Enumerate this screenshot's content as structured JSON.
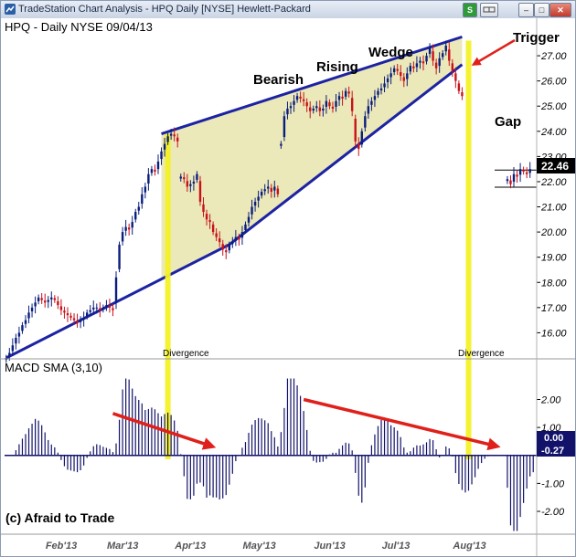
{
  "window": {
    "title": "TradeStation Chart Analysis - HPQ Daily [NYSE] Hewlett-Packard",
    "buttons": {
      "s": "S",
      "minimize": "–",
      "maximize": "□",
      "close": "✕"
    }
  },
  "chart_data": [
    {
      "type": "candlestick",
      "title": "HPQ - Daily  NYSE  09/04/13",
      "ylim": [
        15,
        27.8
      ],
      "y_ticks": [
        16,
        17,
        18,
        19,
        20,
        21,
        22,
        23,
        24,
        25,
        26,
        27
      ],
      "y_tick_labels": [
        "16.00",
        "17.00",
        "18.00",
        "19.00",
        "20.00",
        "21.00",
        "22.00",
        "23.00",
        "24.00",
        "25.00",
        "26.00",
        "27.00"
      ],
      "last_price_label": "22.46",
      "last_price": 22.46,
      "x_tick_labels": [
        "Feb'13",
        "Mar'13",
        "Apr'13",
        "May'13",
        "Jun'13",
        "Jul'13",
        "Aug'13"
      ],
      "series": [
        {
          "segments": [
            {
              "start_day": 0,
              "closes": [
                15.0,
                15.2,
                15.5,
                15.8,
                16.0,
                16.3,
                16.5,
                16.8,
                17.0,
                17.2,
                17.4,
                17.3,
                17.2,
                17.3,
                17.4,
                17.3,
                17.1,
                16.9,
                16.8,
                16.7,
                16.6,
                16.5,
                16.4,
                16.5,
                16.6,
                16.8,
                16.9,
                17.0,
                17.0,
                16.9,
                17.0,
                17.1,
                17.0,
                16.9,
                18.2,
                19.5,
                20.0,
                20.2,
                20.1,
                20.4,
                20.8,
                21.0,
                21.5,
                21.8,
                22.3,
                22.5,
                22.4,
                22.8,
                23.2,
                23.5,
                23.8,
                23.9,
                23.8,
                23.6
              ]
            },
            {
              "start_day": 54,
              "closes": [
                22.2,
                22.1,
                21.8,
                21.9,
                22.0,
                22.3,
                21.2,
                20.8,
                20.5,
                20.4,
                20.0,
                19.8,
                19.6,
                19.3,
                19.2,
                19.5,
                19.6,
                19.8,
                19.7,
                20.0,
                20.3,
                20.6,
                21.0,
                21.2,
                21.4,
                21.6,
                21.7,
                21.8,
                21.6,
                21.8,
                21.5
              ]
            },
            {
              "start_day": 85,
              "closes": [
                23.5,
                24.6,
                24.9,
                25.0,
                25.2,
                25.4,
                25.3,
                25.2,
                25.0,
                24.8,
                24.9,
                25.0,
                24.8,
                24.9,
                25.2,
                25.0,
                24.9,
                25.2,
                25.4,
                25.3,
                25.6,
                25.5,
                24.8,
                23.6,
                23.3,
                24.0,
                24.6,
                25.0,
                25.2,
                25.4,
                25.6,
                25.7,
                25.9,
                26.1,
                26.3,
                26.5,
                26.4,
                26.2,
                26.0,
                26.3,
                26.6,
                26.5,
                26.7,
                26.8,
                26.7,
                27.0,
                27.3,
                26.8,
                26.5,
                26.9,
                27.1,
                27.4,
                26.8,
                26.4,
                26.0,
                25.6,
                25.4
              ]
            },
            {
              "start_day": 155,
              "closes": [
                22.1,
                21.9,
                22.3,
                22.2,
                22.5,
                22.4,
                22.3,
                22.5
              ]
            }
          ]
        }
      ],
      "annotations": {
        "bearish": "Bearish",
        "rising": "Rising",
        "wedge": "Wedge",
        "trigger": "Trigger",
        "gap": "Gap",
        "divergence_1": "Divergence",
        "divergence_2": "Divergence"
      },
      "wedge": {
        "upper": [
          [
            48,
            23.9
          ],
          [
            141,
            27.75
          ]
        ],
        "lower": [
          [
            0,
            15.0
          ],
          [
            69,
            19.5
          ],
          [
            141,
            26.65
          ]
        ]
      },
      "divergence_days": [
        50,
        143
      ]
    },
    {
      "type": "histogram",
      "title": "MACD SMA (3,10)",
      "ylim": [
        -2.75,
        2.8
      ],
      "y_ticks": [
        2,
        1,
        0,
        -1,
        -2
      ],
      "y_tick_labels": [
        "2.00",
        "1.00",
        "0.00",
        "-1.00",
        "-2.00"
      ],
      "current_value_labels": [
        "0.00",
        "-0.27"
      ],
      "current_value": -0.27,
      "divergence_arrows": [
        [
          [
            33,
            1.5
          ],
          [
            63,
            0.35
          ]
        ],
        [
          [
            92,
            2.0
          ],
          [
            151,
            0.35
          ]
        ]
      ]
    }
  ],
  "watermark": "(c) Afraid to Trade",
  "colors": {
    "up": "#0a1e7c",
    "down": "#c8121b",
    "wedge_line": "#1c23a3",
    "wedge_fill": "#e7e4ad",
    "divergence": "#f4f226",
    "arrow": "#e0201a",
    "ma_label": "#11116e"
  }
}
